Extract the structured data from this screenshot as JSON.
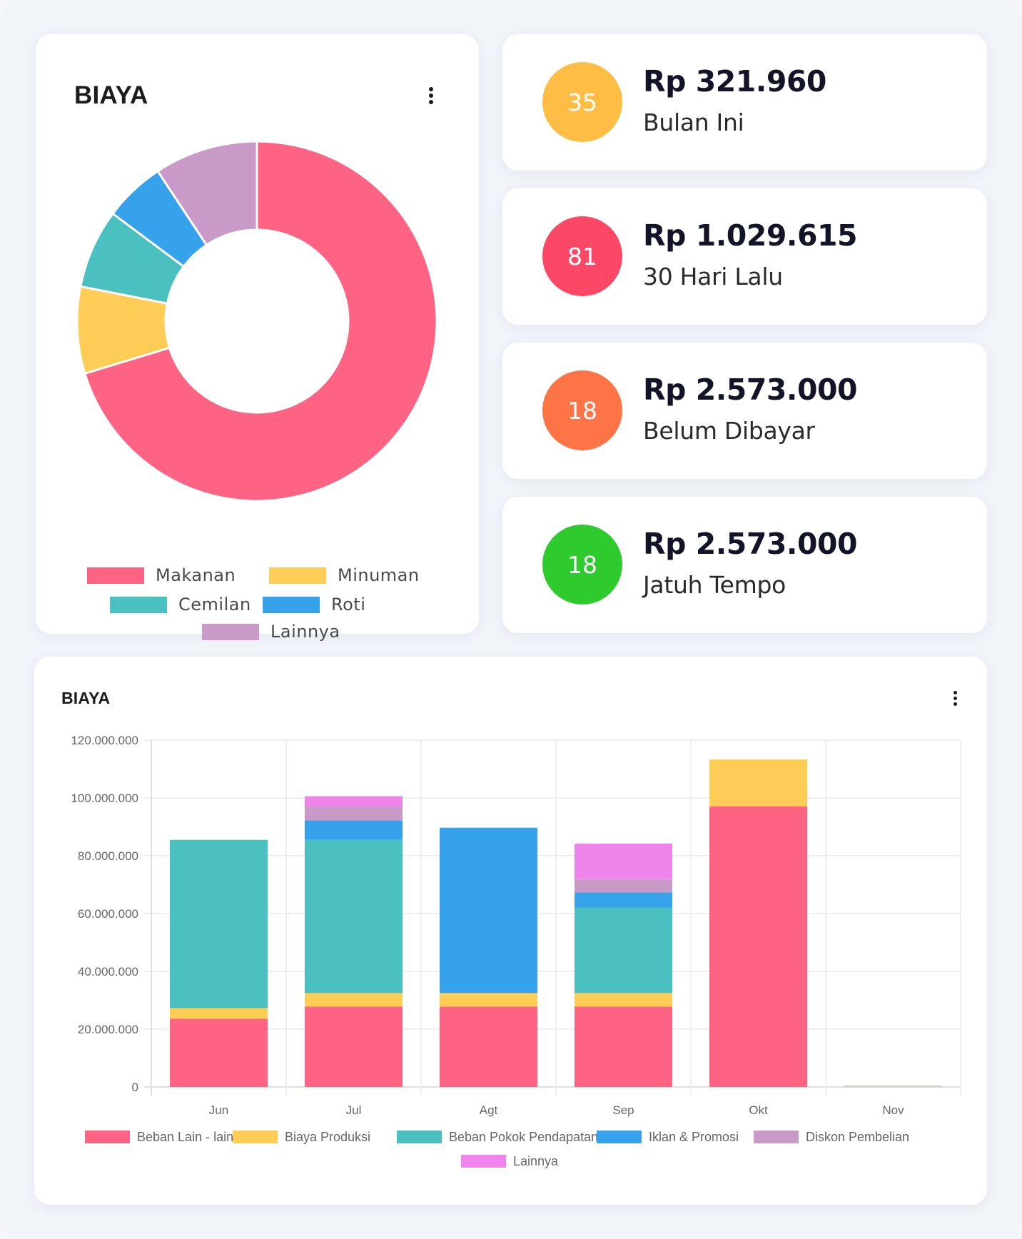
{
  "donut_card": {
    "title": "BIAYA",
    "menu_icon": "kebab-vertical-icon"
  },
  "stats": [
    {
      "count": "35",
      "amount": "Rp 321.960",
      "label": "Bulan Ini",
      "color": "#ffbd45"
    },
    {
      "count": "81",
      "amount": "Rp 1.029.615",
      "label": "30 Hari Lalu",
      "color": "#fd4766"
    },
    {
      "count": "18",
      "amount": "Rp 2.573.000",
      "label": "Belum Dibayar",
      "color": "#ff7446"
    },
    {
      "count": "18",
      "amount": "Rp 2.573.000",
      "label": "Jatuh Tempo",
      "color": "#2fcb2e"
    }
  ],
  "bar_card": {
    "title": "BIAYA",
    "menu_icon": "kebab-vertical-icon"
  },
  "chart_data": [
    {
      "type": "pie",
      "subtype": "doughnut",
      "title": "BIAYA",
      "categories": [
        "Makanan",
        "Minuman",
        "Cemilan",
        "Roti",
        "Lainnya"
      ],
      "values": [
        70.3,
        7.8,
        7.1,
        5.5,
        9.3
      ],
      "unit": "percent (estimated)",
      "colors": [
        "#ff6384",
        "#ffcd56",
        "#4bc0c0",
        "#36a2eb",
        "#c99ac8"
      ],
      "legend": "bottom"
    },
    {
      "type": "bar",
      "stacked": true,
      "title": "BIAYA",
      "categories": [
        "Jun",
        "Jul",
        "Agt",
        "Sep",
        "Okt",
        "Nov"
      ],
      "series": [
        {
          "name": "Beban Lain - lain",
          "color": "#ff6384",
          "values": [
            23600000,
            27800000,
            27800000,
            27800000,
            97100000,
            0
          ]
        },
        {
          "name": "Biaya Produksi",
          "color": "#ffcd56",
          "values": [
            3700000,
            4700000,
            4700000,
            4700000,
            16200000,
            0
          ]
        },
        {
          "name": "Beban Pokok Pendapatan",
          "color": "#4bc0c0",
          "values": [
            58200000,
            53000000,
            0,
            29600000,
            0,
            0
          ]
        },
        {
          "name": "Iklan & Promosi",
          "color": "#36a2eb",
          "values": [
            0,
            6700000,
            57200000,
            5200000,
            0,
            0
          ]
        },
        {
          "name": "Diskon Pembelian",
          "color": "#c99ac8",
          "values": [
            0,
            4900000,
            0,
            4500000,
            0,
            0
          ]
        },
        {
          "name": "Lainnya",
          "color": "#ef85ec",
          "values": [
            0,
            3500000,
            0,
            12400000,
            0,
            0
          ]
        }
      ],
      "ylim": [
        0,
        120000000
      ],
      "yticks": [
        0,
        20000000,
        40000000,
        60000000,
        80000000,
        100000000,
        120000000
      ],
      "ytick_labels": [
        "0",
        "20.000.000",
        "40.000.000",
        "60.000.000",
        "80.000.000",
        "100.000.000",
        "120.000.000"
      ],
      "grid": true,
      "legend": "bottom",
      "xlabel": "",
      "ylabel": ""
    }
  ]
}
